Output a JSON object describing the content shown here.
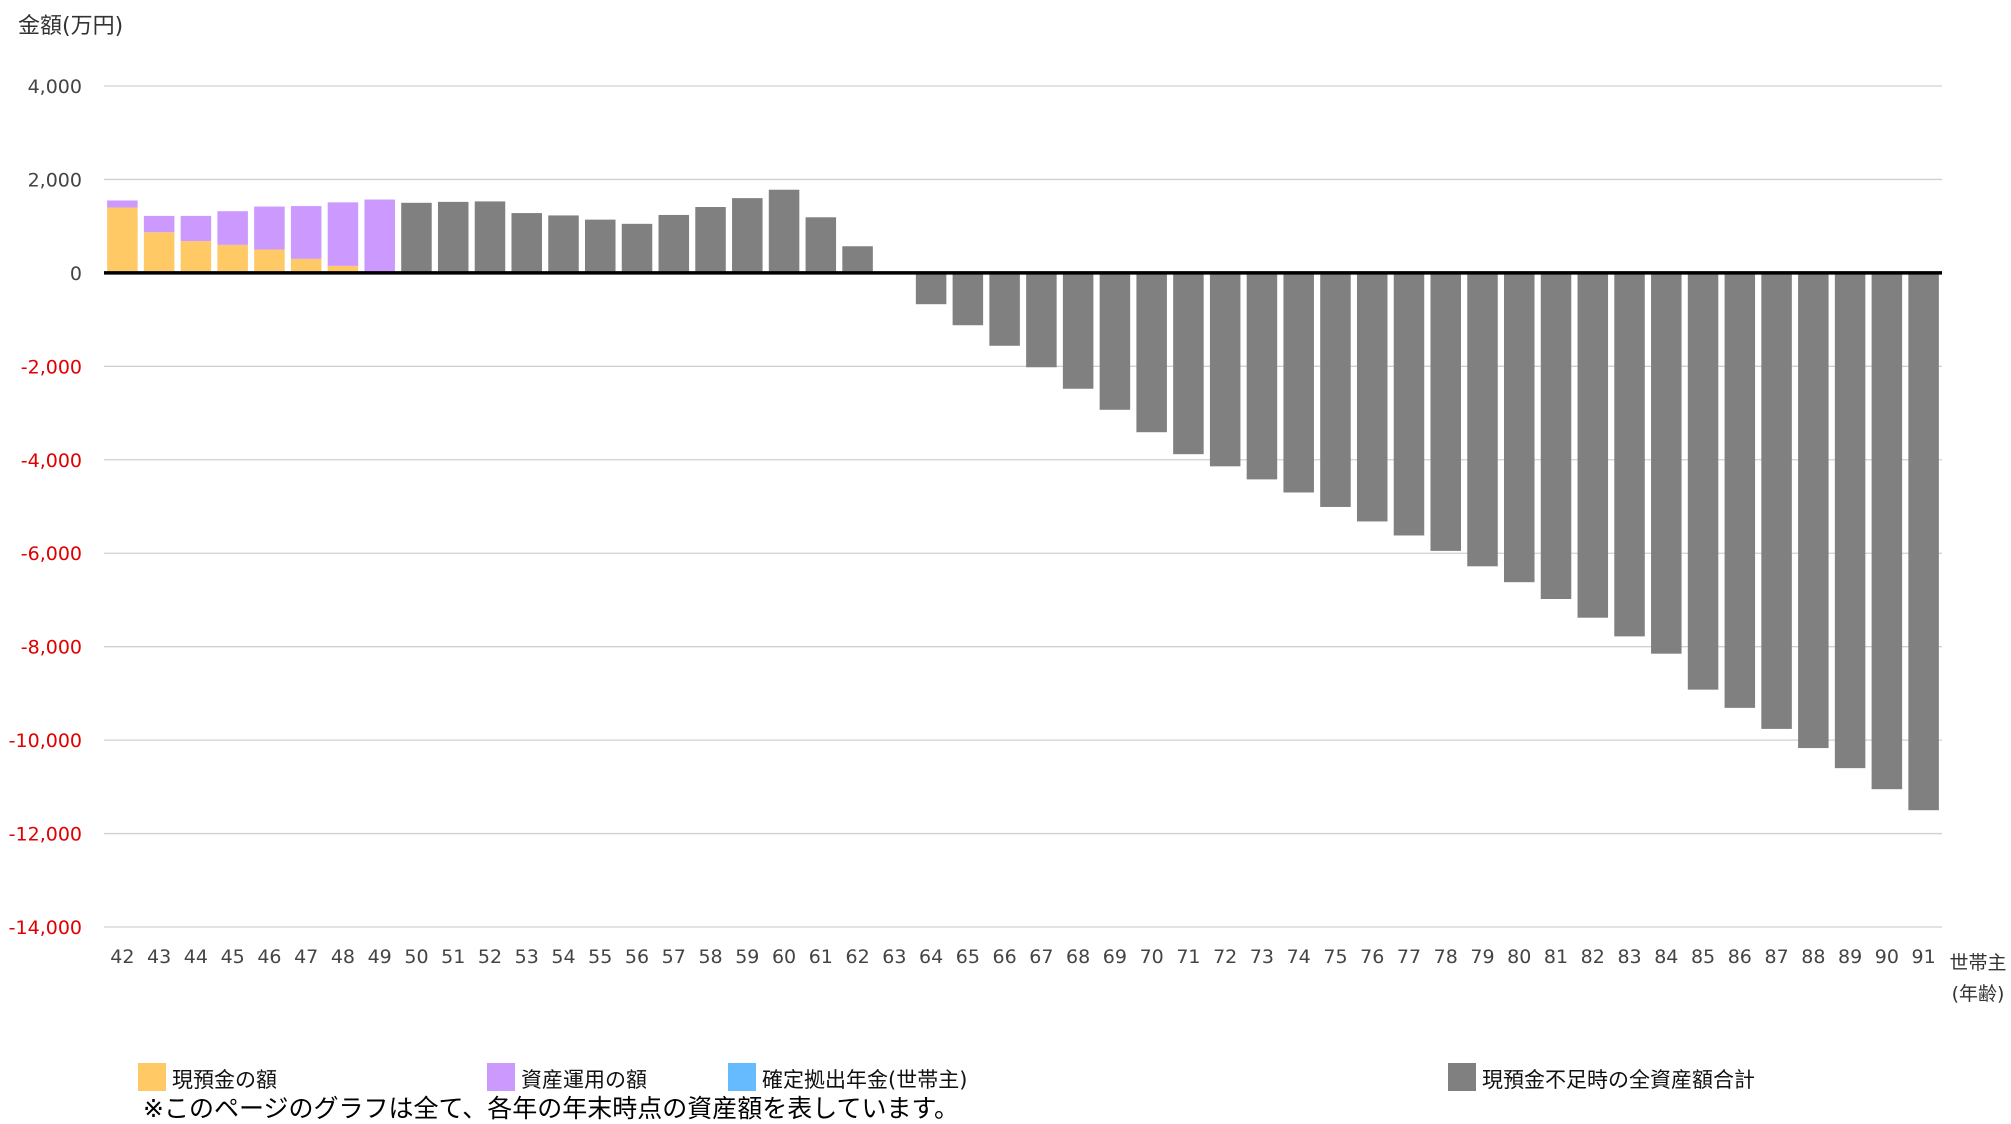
{
  "chart_data": {
    "type": "bar",
    "stacked": true,
    "title": "",
    "ylabel": "金額(万円)",
    "xlabel_lines": [
      "世帯主",
      "(年齢)"
    ],
    "ylim": [
      -14000,
      4000
    ],
    "y_ticks": [
      4000,
      2000,
      0,
      -2000,
      -4000,
      -6000,
      -8000,
      -10000,
      -12000,
      -14000
    ],
    "y_tick_labels": [
      "4,000",
      "2,000",
      "0",
      "-2,000",
      "-4,000",
      "-6,000",
      "-8,000",
      "-10,000",
      "-12,000",
      "-14,000"
    ],
    "negative_tick_color": "#e00000",
    "grid": true,
    "legend_position": "bottom",
    "categories": [
      "42",
      "43",
      "44",
      "45",
      "46",
      "47",
      "48",
      "49",
      "50",
      "51",
      "52",
      "53",
      "54",
      "55",
      "56",
      "57",
      "58",
      "59",
      "60",
      "61",
      "62",
      "63",
      "64",
      "65",
      "66",
      "67",
      "68",
      "69",
      "70",
      "71",
      "72",
      "73",
      "74",
      "75",
      "76",
      "77",
      "78",
      "79",
      "80",
      "81",
      "82",
      "83",
      "84",
      "85",
      "86",
      "87",
      "88",
      "89",
      "90",
      "91"
    ],
    "series": [
      {
        "name": "現預金の額",
        "color": "#ffc966",
        "values": [
          1400,
          870,
          680,
          600,
          500,
          300,
          150,
          0,
          0,
          0,
          0,
          0,
          0,
          0,
          0,
          0,
          0,
          0,
          0,
          0,
          0,
          0,
          0,
          0,
          0,
          0,
          0,
          0,
          0,
          0,
          0,
          0,
          0,
          0,
          0,
          0,
          0,
          0,
          0,
          0,
          0,
          0,
          0,
          0,
          0,
          0,
          0,
          0,
          0,
          0
        ]
      },
      {
        "name": "資産運用の額",
        "color": "#cc99ff",
        "values": [
          150,
          350,
          540,
          720,
          920,
          1130,
          1360,
          1570,
          0,
          0,
          0,
          0,
          0,
          0,
          0,
          0,
          0,
          0,
          0,
          0,
          0,
          0,
          0,
          0,
          0,
          0,
          0,
          0,
          0,
          0,
          0,
          0,
          0,
          0,
          0,
          0,
          0,
          0,
          0,
          0,
          0,
          0,
          0,
          0,
          0,
          0,
          0,
          0,
          0,
          0
        ]
      },
      {
        "name": "確定拠出年金(世帯主)",
        "color": "#66bbff",
        "values": [
          0,
          0,
          0,
          0,
          0,
          0,
          0,
          0,
          0,
          0,
          0,
          0,
          0,
          0,
          0,
          0,
          0,
          0,
          0,
          0,
          0,
          0,
          0,
          0,
          0,
          0,
          0,
          0,
          0,
          0,
          0,
          0,
          0,
          0,
          0,
          0,
          0,
          0,
          0,
          0,
          0,
          0,
          0,
          0,
          0,
          0,
          0,
          0,
          0,
          0
        ]
      },
      {
        "name": "現預金不足時の全資産額合計",
        "color": "#808080",
        "values": [
          0,
          0,
          0,
          0,
          0,
          0,
          0,
          0,
          1500,
          1520,
          1530,
          1280,
          1230,
          1140,
          1050,
          1240,
          1410,
          1600,
          1780,
          1190,
          570,
          0,
          -670,
          -1120,
          -1560,
          -2020,
          -2480,
          -2930,
          -3410,
          -3880,
          -4140,
          -4420,
          -4700,
          -5010,
          -5320,
          -5620,
          -5950,
          -6280,
          -6620,
          -6980,
          -7380,
          -7780,
          -8150,
          -8920,
          -9310,
          -9760,
          -10170,
          -10600,
          -11050,
          -11500
        ]
      }
    ]
  },
  "legend_order": [
    0,
    1,
    2,
    3
  ],
  "footnote": "※このページのグラフは全て、各年の年末時点の資産額を表しています。"
}
